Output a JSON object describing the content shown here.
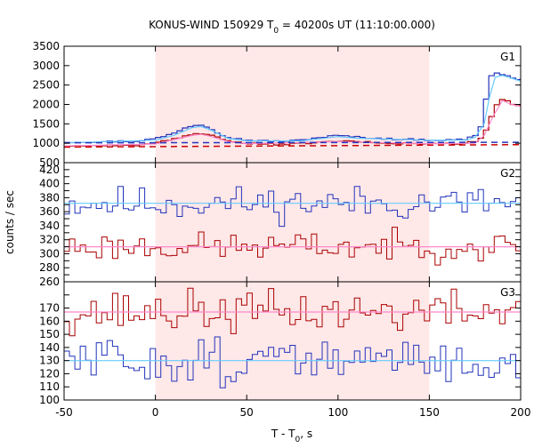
{
  "chart_data": {
    "type": "line",
    "title": {
      "main": "KONUS-WIND 150929 T",
      "sub": "0",
      "rest": " = 40200s UT (11:10:00.000)"
    },
    "xlabel": {
      "main": "T - T",
      "sub": "0",
      "rest": ", s"
    },
    "ylabel": "counts / sec",
    "xlim": [
      -50,
      200
    ],
    "x_ticks": [
      -50,
      0,
      50,
      100,
      150,
      200
    ],
    "highlight_interval": {
      "x": [
        0,
        150
      ],
      "color": "#ffe8e8"
    },
    "bin_width_s": 2.944,
    "colors": {
      "blue": "#2233bb",
      "red": "#aa0000",
      "cyan_fit": "#66ccff",
      "pink_fit": "#ff88cc",
      "blue_bg": "#2233bb",
      "red_bg": "#cc0000"
    },
    "panels": [
      {
        "name": "G1",
        "ylim": [
          500,
          3500
        ],
        "y_ticks": [
          500,
          1000,
          1500,
          2000,
          2500,
          3000,
          3500
        ],
        "series": [
          {
            "style": "blue-hist",
            "points": [
              [
                -50,
                1030
              ],
              [
                -30,
                1040
              ],
              [
                -10,
                1060
              ],
              [
                0,
                1120
              ],
              [
                10,
                1250
              ],
              [
                15,
                1380
              ],
              [
                20,
                1450
              ],
              [
                25,
                1480
              ],
              [
                30,
                1400
              ],
              [
                35,
                1250
              ],
              [
                40,
                1150
              ],
              [
                50,
                1080
              ],
              [
                60,
                1060
              ],
              [
                70,
                1050
              ],
              [
                80,
                1080
              ],
              [
                90,
                1150
              ],
              [
                100,
                1200
              ],
              [
                110,
                1160
              ],
              [
                120,
                1130
              ],
              [
                130,
                1110
              ],
              [
                140,
                1100
              ],
              [
                150,
                1090
              ],
              [
                160,
                1080
              ],
              [
                170,
                1100
              ],
              [
                175,
                1200
              ],
              [
                178,
                1400
              ],
              [
                180,
                1800
              ],
              [
                182,
                2400
              ],
              [
                184,
                2750
              ],
              [
                187,
                2800
              ],
              [
                190,
                2780
              ],
              [
                195,
                2700
              ],
              [
                200,
                2600
              ]
            ]
          },
          {
            "style": "cyan-fit",
            "points": [
              [
                -50,
                1010
              ],
              [
                0,
                1080
              ],
              [
                10,
                1200
              ],
              [
                20,
                1400
              ],
              [
                25,
                1430
              ],
              [
                30,
                1350
              ],
              [
                40,
                1120
              ],
              [
                50,
                1060
              ],
              [
                80,
                1060
              ],
              [
                100,
                1170
              ],
              [
                110,
                1130
              ],
              [
                150,
                1080
              ],
              [
                170,
                1080
              ],
              [
                175,
                1150
              ],
              [
                180,
                1500
              ],
              [
                183,
                2200
              ],
              [
                186,
                2700
              ],
              [
                190,
                2750
              ],
              [
                200,
                2600
              ]
            ]
          },
          {
            "style": "red-hist",
            "points": [
              [
                -50,
                930
              ],
              [
                -30,
                940
              ],
              [
                -10,
                950
              ],
              [
                0,
                1000
              ],
              [
                10,
                1100
              ],
              [
                20,
                1230
              ],
              [
                25,
                1260
              ],
              [
                30,
                1220
              ],
              [
                35,
                1140
              ],
              [
                40,
                1060
              ],
              [
                50,
                990
              ],
              [
                70,
                970
              ],
              [
                90,
                1020
              ],
              [
                100,
                1060
              ],
              [
                110,
                1040
              ],
              [
                130,
                1000
              ],
              [
                150,
                990
              ],
              [
                170,
                990
              ],
              [
                178,
                1100
              ],
              [
                182,
                1400
              ],
              [
                185,
                1800
              ],
              [
                188,
                2100
              ],
              [
                191,
                2150
              ],
              [
                195,
                2000
              ],
              [
                200,
                1950
              ]
            ]
          },
          {
            "style": "pink-fit",
            "points": [
              [
                -50,
                930
              ],
              [
                0,
                980
              ],
              [
                20,
                1200
              ],
              [
                25,
                1230
              ],
              [
                30,
                1180
              ],
              [
                40,
                1040
              ],
              [
                50,
                990
              ],
              [
                100,
                1040
              ],
              [
                150,
                990
              ],
              [
                175,
                1000
              ],
              [
                180,
                1200
              ],
              [
                185,
                1700
              ],
              [
                190,
                2100
              ],
              [
                195,
                2000
              ],
              [
                200,
                1950
              ]
            ]
          },
          {
            "style": "blue-bg",
            "points": [
              [
                -50,
                1010
              ],
              [
                200,
                1025
              ]
            ]
          },
          {
            "style": "red-bg",
            "points": [
              [
                -50,
                900
              ],
              [
                200,
                965
              ]
            ]
          }
        ]
      },
      {
        "name": "G2",
        "ylim": [
          260,
          430
        ],
        "y_ticks": [
          260,
          270,
          280,
          290,
          300,
          310,
          320,
          330,
          340,
          350,
          360,
          370,
          380,
          390,
          400,
          410,
          420
        ],
        "y_tick_labels": [
          260,
          280,
          300,
          320,
          340,
          360,
          380,
          400,
          420
        ],
        "series": [
          {
            "style": "blue-noise",
            "mean": 372,
            "sd": 12,
            "seed": 11
          },
          {
            "style": "cyan-fit",
            "points": [
              [
                -50,
                372
              ],
              [
                200,
                372
              ]
            ]
          },
          {
            "style": "red-noise",
            "mean": 310,
            "sd": 10,
            "seed": 23
          },
          {
            "style": "pink-fit",
            "points": [
              [
                -50,
                310
              ],
              [
                200,
                310
              ]
            ]
          }
        ]
      },
      {
        "name": "G3",
        "ylim": [
          100,
          190
        ],
        "y_ticks": [
          100,
          110,
          120,
          130,
          140,
          150,
          160,
          170,
          180,
          190
        ],
        "y_tick_labels": [
          100,
          110,
          120,
          130,
          140,
          150,
          160,
          170
        ],
        "series": [
          {
            "style": "red-noise",
            "mean": 167,
            "sd": 8,
            "seed": 37
          },
          {
            "style": "pink-fit",
            "points": [
              [
                -50,
                167
              ],
              [
                200,
                167
              ]
            ]
          },
          {
            "style": "blue-noise",
            "mean": 130,
            "sd": 9,
            "seed": 51
          },
          {
            "style": "cyan-fit",
            "points": [
              [
                -50,
                130
              ],
              [
                200,
                130
              ]
            ]
          }
        ]
      }
    ]
  }
}
